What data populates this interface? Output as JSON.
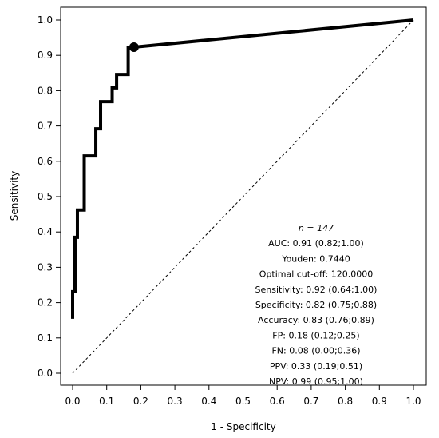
{
  "chart_data": {
    "type": "line",
    "title": "",
    "xlabel": "1 - Specificity",
    "ylabel": "Sensitivity",
    "xlim": [
      0,
      1
    ],
    "ylim": [
      0,
      1
    ],
    "xticks": [
      "0.0",
      "0.1",
      "0.2",
      "0.3",
      "0.4",
      "0.5",
      "0.6",
      "0.7",
      "0.8",
      "0.9",
      "1.0"
    ],
    "yticks": [
      "0.0",
      "0.1",
      "0.2",
      "0.3",
      "0.4",
      "0.5",
      "0.6",
      "0.7",
      "0.8",
      "0.9",
      "1.0"
    ],
    "grid": false,
    "series": [
      {
        "color": "#000000",
        "x": [
          0.0,
          0.0,
          0.007,
          0.007,
          0.014,
          0.014,
          0.034,
          0.034,
          0.068,
          0.068,
          0.082,
          0.082,
          0.116,
          0.116,
          0.129,
          0.129,
          0.163,
          0.163,
          0.18,
          1.0
        ],
        "y": [
          0.154,
          0.231,
          0.231,
          0.385,
          0.385,
          0.462,
          0.462,
          0.615,
          0.615,
          0.692,
          0.692,
          0.769,
          0.769,
          0.808,
          0.808,
          0.846,
          0.846,
          0.923,
          0.923,
          1.0
        ]
      },
      {
        "style": "dashed",
        "color": "#000000",
        "x": [
          0,
          1
        ],
        "y": [
          0,
          1
        ]
      }
    ],
    "optimal_point": {
      "x": 0.18,
      "y": 0.923
    },
    "annotations": [
      "n = 147",
      "AUC: 0.91 (0.82;1.00)",
      "Youden: 0.7440",
      "Optimal cut-off: 120.0000",
      "Sensitivity: 0.92 (0.64;1.00)",
      "Specificity: 0.82 (0.75;0.88)",
      "Accuracy: 0.83 (0.76;0.89)",
      "FP: 0.18 (0.12;0.25)",
      "FN: 0.08 (0.00;0.36)",
      "PPV: 0.33 (0.19;0.51)",
      "NPV: 0.99 (0.95;1.00)"
    ]
  }
}
